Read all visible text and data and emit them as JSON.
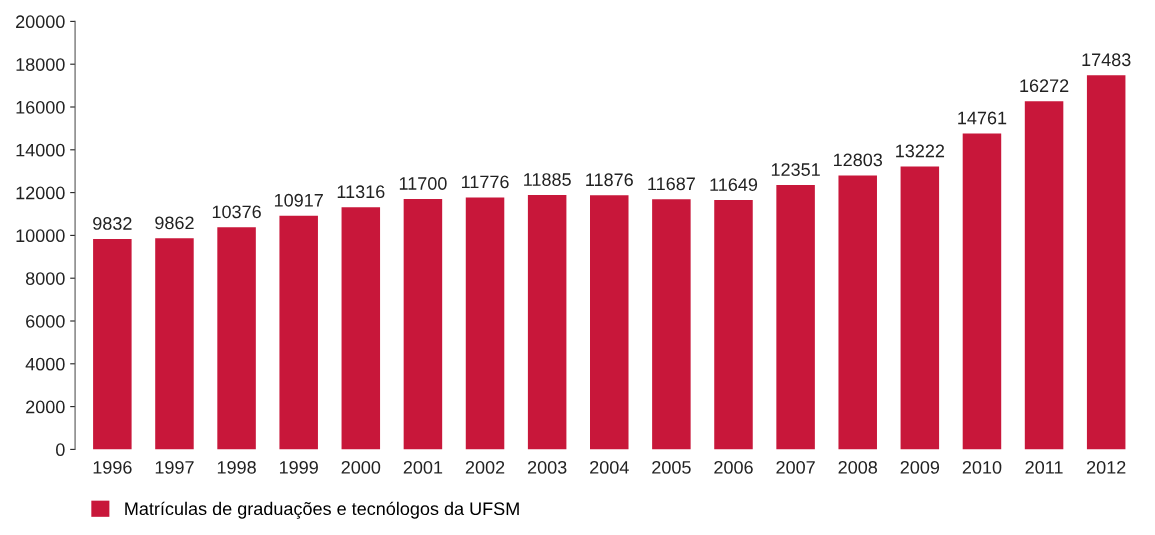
{
  "chart_data": {
    "type": "bar",
    "categories": [
      "1996",
      "1997",
      "1998",
      "1999",
      "2000",
      "2001",
      "2002",
      "2003",
      "2004",
      "2005",
      "2006",
      "2007",
      "2008",
      "2009",
      "2010",
      "2011",
      "2012"
    ],
    "series": [
      {
        "name": "Matrículas de graduações e tecnólogos da UFSM",
        "color": "#c8173a",
        "values": [
          9832,
          9862,
          10376,
          10917,
          11316,
          11700,
          11776,
          11885,
          11876,
          11687,
          11649,
          12351,
          12803,
          13222,
          14761,
          16272,
          17483
        ]
      }
    ],
    "ylim": [
      0,
      20000
    ],
    "yticks": [
      0,
      2000,
      4000,
      6000,
      8000,
      10000,
      12000,
      14000,
      16000,
      18000,
      20000
    ],
    "data_labels": true,
    "grid": false,
    "legend": "bottom left"
  }
}
